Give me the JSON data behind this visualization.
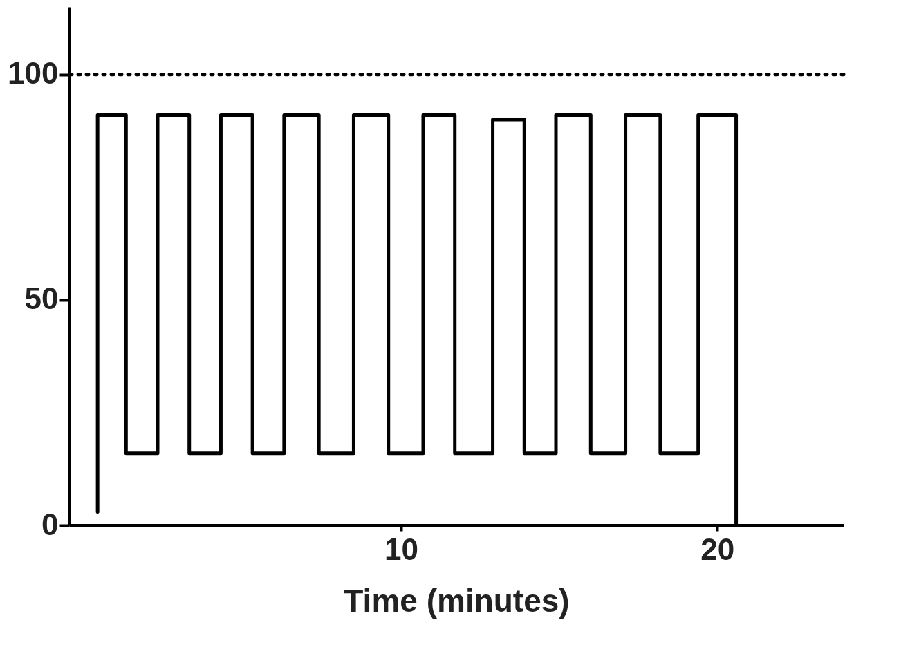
{
  "chart_data": {
    "type": "line",
    "xlabel": "Time (minutes)",
    "x": [
      0.4,
      0.4,
      1.3,
      1.3,
      2.3,
      2.3,
      3.3,
      3.3,
      4.3,
      4.3,
      5.3,
      5.3,
      6.3,
      6.3,
      7.4,
      7.4,
      8.5,
      8.5,
      9.6,
      9.6,
      10.7,
      10.7,
      11.7,
      11.7,
      12.9,
      12.9,
      13.9,
      13.9,
      14.9,
      14.9,
      16.0,
      16.0,
      17.1,
      17.1,
      18.2,
      18.2,
      19.4,
      19.4,
      20.6,
      20.6
    ],
    "series": [
      {
        "color": "#000000",
        "values": [
          3,
          91,
          91,
          16,
          16,
          91,
          91,
          16,
          16,
          91,
          91,
          16,
          16,
          91,
          91,
          16,
          16,
          91,
          91,
          16,
          16,
          91,
          91,
          16,
          16,
          90,
          90,
          16,
          16,
          91,
          91,
          16,
          16,
          91,
          91,
          16,
          16,
          91,
          91,
          0
        ]
      }
    ],
    "xlim": [
      -0.5,
      24
    ],
    "xticks": [
      10,
      20
    ],
    "ylim": [
      0,
      115
    ],
    "yticks": [
      0,
      50,
      100
    ],
    "ref_lines": [
      {
        "axis": "y",
        "value": 100,
        "color": "#000000",
        "line_style": "dotted"
      }
    ],
    "grid": false,
    "marker": "none",
    "line_style": "solid"
  }
}
